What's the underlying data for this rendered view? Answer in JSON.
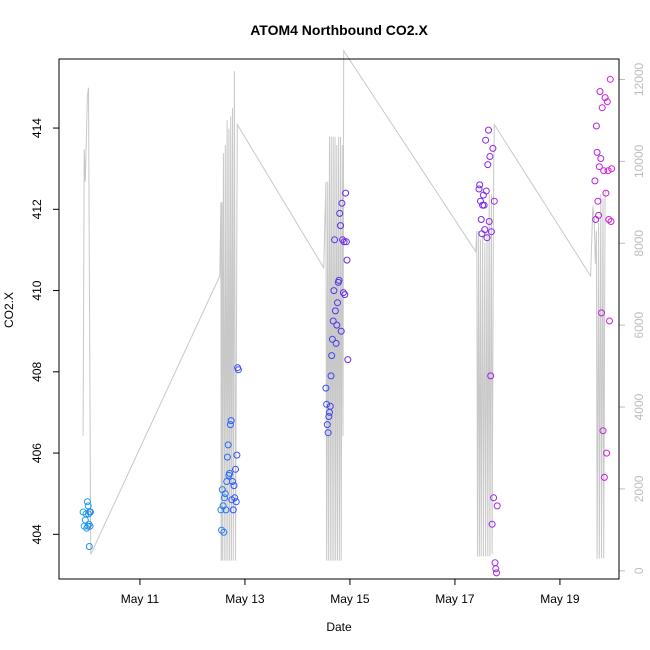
{
  "chart_data": {
    "type": "scatter",
    "title": "ATOM4 Northbound CO2.X",
    "xlabel": "Date",
    "ylabel": "CO2.X",
    "xlim": [
      "2019-05-09T11:00",
      "2019-05-20T03:00"
    ],
    "ylim": [
      402.9,
      415.7
    ],
    "y2lim": [
      -200,
      12500
    ],
    "x_ticks": [
      {
        "value": "2019-05-11",
        "label": "May 11"
      },
      {
        "value": "2019-05-13",
        "label": "May 13"
      },
      {
        "value": "2019-05-15",
        "label": "May 15"
      },
      {
        "value": "2019-05-17",
        "label": "May 17"
      },
      {
        "value": "2019-05-19",
        "label": "May 19"
      }
    ],
    "y_ticks": [
      404,
      406,
      408,
      410,
      412,
      414
    ],
    "y2_ticks": [
      0,
      2000,
      4000,
      6000,
      8000,
      10000,
      12000
    ],
    "grid": false,
    "legend": "none",
    "colors": {
      "background": "#ffffff",
      "axis": "#000000",
      "secondary_axis": "#bdbdbd",
      "secondary_line": "#c8c8c8"
    },
    "series": [
      {
        "marker": "open-circle",
        "axis": "left",
        "color_gradient": [
          "#1fa8e6",
          "#2b5cff",
          "#5a2de6",
          "#9b25e8",
          "#e01bd0"
        ],
        "points": [
          [
            "2019-05-09T22:00",
            404.55
          ],
          [
            "2019-05-09T22:30",
            404.2
          ],
          [
            "2019-05-09T23:00",
            404.35
          ],
          [
            "2019-05-09T23:20",
            404.5
          ],
          [
            "2019-05-09T23:40",
            404.15
          ],
          [
            "2019-05-10T00:00",
            404.8
          ],
          [
            "2019-05-10T00:10",
            404.2
          ],
          [
            "2019-05-10T00:20",
            404.7
          ],
          [
            "2019-05-10T00:30",
            404.5
          ],
          [
            "2019-05-10T00:40",
            404.25
          ],
          [
            "2019-05-10T00:50",
            403.7
          ],
          [
            "2019-05-10T01:00",
            404.55
          ],
          [
            "2019-05-10T01:10",
            404.2
          ],
          [
            "2019-05-10T01:20",
            404.55
          ],
          [
            "2019-05-12T13:00",
            404.6
          ],
          [
            "2019-05-12T13:20",
            404.1
          ],
          [
            "2019-05-12T13:40",
            405.1
          ],
          [
            "2019-05-12T14:00",
            404.7
          ],
          [
            "2019-05-12T14:20",
            404.05
          ],
          [
            "2019-05-12T14:40",
            404.9
          ],
          [
            "2019-05-12T15:00",
            405.0
          ],
          [
            "2019-05-12T15:20",
            404.6
          ],
          [
            "2019-05-12T15:40",
            405.3
          ],
          [
            "2019-05-12T16:00",
            405.9
          ],
          [
            "2019-05-12T16:20",
            406.2
          ],
          [
            "2019-05-12T16:40",
            405.45
          ],
          [
            "2019-05-12T17:00",
            405.5
          ],
          [
            "2019-05-12T17:20",
            406.7
          ],
          [
            "2019-05-12T17:40",
            406.8
          ],
          [
            "2019-05-12T18:00",
            404.85
          ],
          [
            "2019-05-12T18:20",
            405.3
          ],
          [
            "2019-05-12T18:40",
            404.6
          ],
          [
            "2019-05-12T19:00",
            405.2
          ],
          [
            "2019-05-12T19:20",
            404.9
          ],
          [
            "2019-05-12T19:40",
            405.6
          ],
          [
            "2019-05-12T20:00",
            404.8
          ],
          [
            "2019-05-12T20:20",
            405.95
          ],
          [
            "2019-05-12T20:40",
            408.1
          ],
          [
            "2019-05-12T21:00",
            408.05
          ],
          [
            "2019-05-14T13:00",
            407.6
          ],
          [
            "2019-05-14T13:20",
            407.2
          ],
          [
            "2019-05-14T13:40",
            406.7
          ],
          [
            "2019-05-14T14:00",
            406.5
          ],
          [
            "2019-05-14T14:20",
            406.9
          ],
          [
            "2019-05-14T14:40",
            407.0
          ],
          [
            "2019-05-14T15:00",
            407.15
          ],
          [
            "2019-05-14T15:20",
            407.9
          ],
          [
            "2019-05-14T15:40",
            408.4
          ],
          [
            "2019-05-14T16:00",
            408.8
          ],
          [
            "2019-05-14T16:20",
            409.25
          ],
          [
            "2019-05-14T16:40",
            410.0
          ],
          [
            "2019-05-14T17:00",
            411.25
          ],
          [
            "2019-05-14T17:20",
            409.5
          ],
          [
            "2019-05-14T17:40",
            408.7
          ],
          [
            "2019-05-14T18:00",
            409.15
          ],
          [
            "2019-05-14T18:20",
            409.7
          ],
          [
            "2019-05-14T18:40",
            410.2
          ],
          [
            "2019-05-14T19:00",
            410.25
          ],
          [
            "2019-05-14T19:20",
            411.9
          ],
          [
            "2019-05-14T19:40",
            411.6
          ],
          [
            "2019-05-14T20:00",
            409.0
          ],
          [
            "2019-05-14T20:20",
            412.15
          ],
          [
            "2019-05-14T20:40",
            411.25
          ],
          [
            "2019-05-14T21:00",
            409.95
          ],
          [
            "2019-05-14T21:20",
            411.2
          ],
          [
            "2019-05-14T21:40",
            409.9
          ],
          [
            "2019-05-14T22:00",
            412.4
          ],
          [
            "2019-05-14T22:20",
            411.2
          ],
          [
            "2019-05-14T22:40",
            410.75
          ],
          [
            "2019-05-14T23:00",
            408.3
          ],
          [
            "2019-05-17T11:00",
            412.5
          ],
          [
            "2019-05-17T11:20",
            412.6
          ],
          [
            "2019-05-17T11:40",
            412.2
          ],
          [
            "2019-05-17T12:00",
            411.75
          ],
          [
            "2019-05-17T12:20",
            411.4
          ],
          [
            "2019-05-17T12:40",
            412.1
          ],
          [
            "2019-05-17T13:00",
            412.35
          ],
          [
            "2019-05-17T13:20",
            412.1
          ],
          [
            "2019-05-17T13:40",
            411.5
          ],
          [
            "2019-05-17T14:00",
            413.7
          ],
          [
            "2019-05-17T14:20",
            412.45
          ],
          [
            "2019-05-17T14:40",
            411.3
          ],
          [
            "2019-05-17T15:00",
            413.1
          ],
          [
            "2019-05-17T15:20",
            413.95
          ],
          [
            "2019-05-17T15:40",
            411.7
          ],
          [
            "2019-05-17T16:00",
            413.3
          ],
          [
            "2019-05-17T16:20",
            407.9
          ],
          [
            "2019-05-17T16:40",
            411.45
          ],
          [
            "2019-05-17T17:00",
            404.25
          ],
          [
            "2019-05-17T17:20",
            413.5
          ],
          [
            "2019-05-17T17:40",
            404.9
          ],
          [
            "2019-05-17T18:00",
            412.2
          ],
          [
            "2019-05-17T18:20",
            403.3
          ],
          [
            "2019-05-17T18:40",
            403.15
          ],
          [
            "2019-05-17T19:00",
            403.05
          ],
          [
            "2019-05-17T19:20",
            404.7
          ],
          [
            "2019-05-19T16:00",
            412.7
          ],
          [
            "2019-05-19T16:20",
            411.75
          ],
          [
            "2019-05-19T16:40",
            414.05
          ],
          [
            "2019-05-19T17:00",
            413.4
          ],
          [
            "2019-05-19T17:20",
            412.2
          ],
          [
            "2019-05-19T17:40",
            411.85
          ],
          [
            "2019-05-19T18:00",
            413.05
          ],
          [
            "2019-05-19T18:20",
            414.9
          ],
          [
            "2019-05-19T18:40",
            413.25
          ],
          [
            "2019-05-19T19:00",
            409.45
          ],
          [
            "2019-05-19T19:20",
            414.5
          ],
          [
            "2019-05-19T19:40",
            406.55
          ],
          [
            "2019-05-19T20:00",
            412.95
          ],
          [
            "2019-05-19T20:20",
            405.4
          ],
          [
            "2019-05-19T20:40",
            414.75
          ],
          [
            "2019-05-19T21:00",
            412.4
          ],
          [
            "2019-05-19T21:20",
            406.0
          ],
          [
            "2019-05-19T21:40",
            414.65
          ],
          [
            "2019-05-19T22:00",
            412.95
          ],
          [
            "2019-05-19T22:20",
            411.75
          ],
          [
            "2019-05-19T22:40",
            409.25
          ],
          [
            "2019-05-19T23:00",
            415.2
          ],
          [
            "2019-05-19T23:20",
            411.7
          ],
          [
            "2019-05-19T23:40",
            413.0
          ]
        ]
      },
      {
        "type": "line",
        "axis": "right",
        "color": "#c8c8c8",
        "points": [
          [
            "2019-05-09T22:00",
            3300
          ],
          [
            "2019-05-09T22:30",
            10300
          ],
          [
            "2019-05-09T23:00",
            9500
          ],
          [
            "2019-05-10T00:00",
            11600
          ],
          [
            "2019-05-10T00:30",
            11800
          ],
          [
            "2019-05-10T01:30",
            400
          ],
          [
            "2019-05-12T12:30",
            7200
          ],
          [
            "2019-05-12T13:00",
            9000
          ],
          [
            "2019-05-12T13:10",
            250
          ],
          [
            "2019-05-12T13:30",
            9000
          ],
          [
            "2019-05-12T13:40",
            250
          ],
          [
            "2019-05-12T14:10",
            10200
          ],
          [
            "2019-05-12T14:30",
            250
          ],
          [
            "2019-05-12T15:00",
            10400
          ],
          [
            "2019-05-12T15:20",
            250
          ],
          [
            "2019-05-12T15:50",
            11000
          ],
          [
            "2019-05-12T16:10",
            250
          ],
          [
            "2019-05-12T16:40",
            10800
          ],
          [
            "2019-05-12T17:00",
            250
          ],
          [
            "2019-05-12T17:30",
            11100
          ],
          [
            "2019-05-12T17:50",
            250
          ],
          [
            "2019-05-12T18:20",
            11300
          ],
          [
            "2019-05-12T18:40",
            250
          ],
          [
            "2019-05-12T19:10",
            12200
          ],
          [
            "2019-05-12T19:40",
            250
          ],
          [
            "2019-05-12T20:30",
            10900
          ],
          [
            "2019-05-14T12:00",
            7400
          ],
          [
            "2019-05-14T13:00",
            9500
          ],
          [
            "2019-05-14T13:20",
            250
          ],
          [
            "2019-05-14T13:50",
            9500
          ],
          [
            "2019-05-14T14:10",
            250
          ],
          [
            "2019-05-14T14:40",
            10600
          ],
          [
            "2019-05-14T15:00",
            250
          ],
          [
            "2019-05-14T15:30",
            10600
          ],
          [
            "2019-05-14T15:50",
            250
          ],
          [
            "2019-05-14T16:20",
            10600
          ],
          [
            "2019-05-14T16:40",
            250
          ],
          [
            "2019-05-14T17:10",
            10600
          ],
          [
            "2019-05-14T17:30",
            250
          ],
          [
            "2019-05-14T18:00",
            10400
          ],
          [
            "2019-05-14T18:20",
            250
          ],
          [
            "2019-05-14T18:50",
            10600
          ],
          [
            "2019-05-14T19:10",
            250
          ],
          [
            "2019-05-14T19:40",
            10600
          ],
          [
            "2019-05-14T20:00",
            250
          ],
          [
            "2019-05-14T20:30",
            10400
          ],
          [
            "2019-05-14T20:50",
            3300
          ],
          [
            "2019-05-14T21:10",
            12700
          ],
          [
            "2019-05-17T09:30",
            7800
          ],
          [
            "2019-05-17T10:00",
            8300
          ],
          [
            "2019-05-17T10:20",
            350
          ],
          [
            "2019-05-17T10:50",
            8300
          ],
          [
            "2019-05-17T11:10",
            350
          ],
          [
            "2019-05-17T11:40",
            8100
          ],
          [
            "2019-05-17T12:00",
            350
          ],
          [
            "2019-05-17T12:40",
            8200
          ],
          [
            "2019-05-17T13:00",
            350
          ],
          [
            "2019-05-17T13:40",
            8000
          ],
          [
            "2019-05-17T14:00",
            350
          ],
          [
            "2019-05-17T14:40",
            8300
          ],
          [
            "2019-05-17T15:00",
            350
          ],
          [
            "2019-05-17T15:40",
            9200
          ],
          [
            "2019-05-17T16:00",
            350
          ],
          [
            "2019-05-17T16:40",
            9200
          ],
          [
            "2019-05-17T17:00",
            400
          ],
          [
            "2019-05-17T17:40",
            9600
          ],
          [
            "2019-05-17T18:00",
            10900
          ],
          [
            "2019-05-19T14:00",
            7200
          ],
          [
            "2019-05-19T15:00",
            8900
          ],
          [
            "2019-05-19T15:40",
            8600
          ],
          [
            "2019-05-19T16:10",
            7500
          ],
          [
            "2019-05-19T16:40",
            8300
          ],
          [
            "2019-05-19T17:00",
            300
          ],
          [
            "2019-05-19T17:40",
            8500
          ],
          [
            "2019-05-19T18:00",
            300
          ],
          [
            "2019-05-19T18:40",
            9200
          ],
          [
            "2019-05-19T19:00",
            300
          ],
          [
            "2019-05-19T19:40",
            9100
          ],
          [
            "2019-05-19T20:00",
            300
          ],
          [
            "2019-05-19T20:40",
            9200
          ],
          [
            "2019-05-19T21:00",
            9300
          ]
        ]
      }
    ]
  }
}
